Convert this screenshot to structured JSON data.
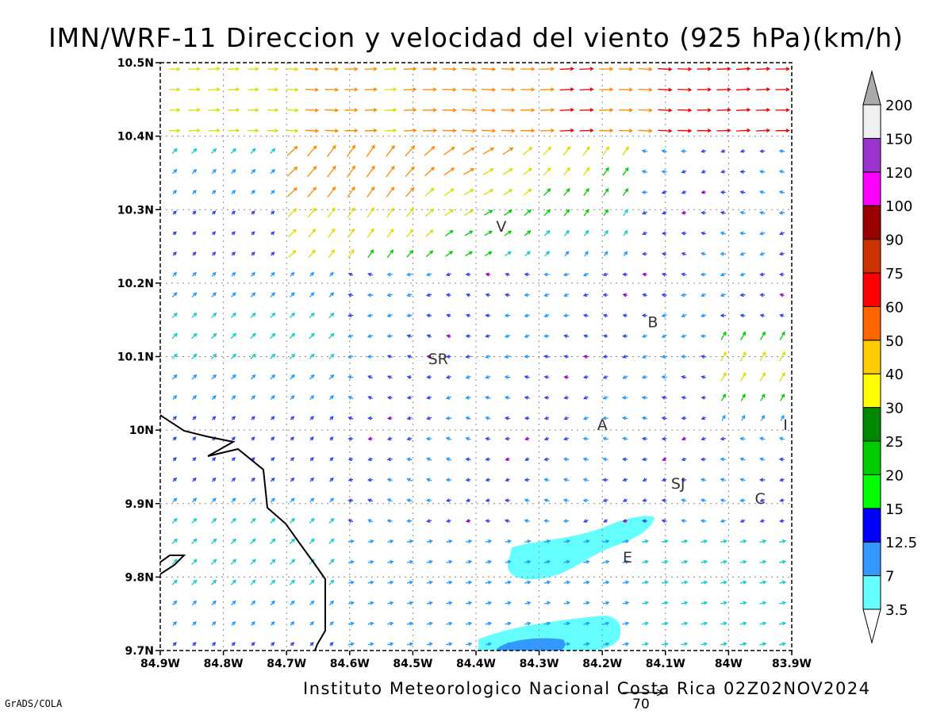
{
  "title": "IMN/WRF-11 Direccion y velocidad del viento (925 hPa)(km/h)",
  "footer": "Instituto Meteorologico Nacional Costa Rica 02Z02NOV2024",
  "credit": "GrADS/COLA",
  "reference_vector": {
    "value": 70,
    "label": "70"
  },
  "map": {
    "lon_range": [
      -84.9,
      -83.9
    ],
    "lat_range": [
      9.7,
      10.5
    ],
    "x_ticks": [
      "84.9W",
      "84.8W",
      "84.7W",
      "84.6W",
      "84.5W",
      "84.4W",
      "84.3W",
      "84.2W",
      "84.1W",
      "84W",
      "83.9W"
    ],
    "y_ticks": [
      "9.7N",
      "9.8N",
      "9.9N",
      "10N",
      "10.1N",
      "10.2N",
      "10.3N",
      "10.4N",
      "10.5N"
    ],
    "grid": true,
    "city_labels": [
      {
        "label": "V",
        "lon": -84.36,
        "lat": 10.27
      },
      {
        "label": "B",
        "lon": -84.12,
        "lat": 10.14
      },
      {
        "label": "SR",
        "lon": -84.46,
        "lat": 10.09
      },
      {
        "label": "A",
        "lon": -84.2,
        "lat": 10.0
      },
      {
        "label": "I",
        "lon": -83.91,
        "lat": 10.0
      },
      {
        "label": "SJ",
        "lon": -84.08,
        "lat": 9.92
      },
      {
        "label": "C",
        "lon": -83.95,
        "lat": 9.9
      },
      {
        "label": "E",
        "lon": -84.16,
        "lat": 9.82
      }
    ]
  },
  "colorbar": {
    "labels": [
      "3.5",
      "7",
      "12.5",
      "15",
      "20",
      "25",
      "30",
      "40",
      "50",
      "60",
      "75",
      "90",
      "100",
      "120",
      "150",
      "200"
    ],
    "colors": [
      "#66ffff",
      "#3399ff",
      "#0000ff",
      "#00ff00",
      "#00cc00",
      "#008800",
      "#ffff00",
      "#ffcc00",
      "#ff6600",
      "#ff0000",
      "#cc3300",
      "#990000",
      "#ff00ff",
      "#9933cc",
      "#f0f0f0",
      "#aaaaaa"
    ]
  },
  "colors": {
    "arrow_low": "#9900cc",
    "arrow_blue": "#3344ee",
    "arrow_lightblue": "#2299ff",
    "arrow_cyan": "#11cccc",
    "arrow_green": "#00cc00",
    "arrow_yellow": "#dddd00",
    "arrow_orange": "#ff8800",
    "arrow_red": "#ee0000",
    "shade_cyan": "#66ffff",
    "shade_blue": "#3399ff",
    "coastline": "#000000"
  }
}
